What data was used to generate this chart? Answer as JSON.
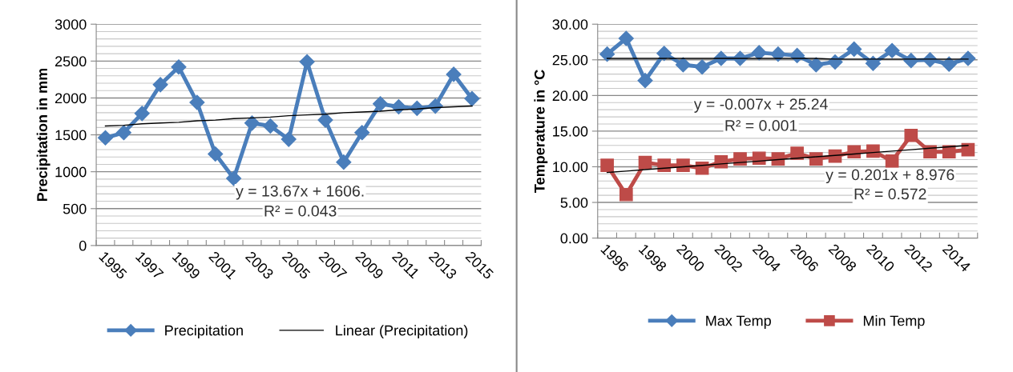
{
  "chart_data": [
    {
      "type": "line",
      "ylabel": "Precipitation in mm",
      "categories": [
        "1995",
        null,
        "1997",
        null,
        "1999",
        null,
        "2001",
        null,
        "2003",
        null,
        "2005",
        null,
        "2007",
        null,
        "2009",
        null,
        "2011",
        null,
        "2013",
        null,
        "2015"
      ],
      "series": [
        {
          "name": "Precipitation",
          "color": "#4a7ebb",
          "marker": "diamond",
          "values": [
            1460,
            1530,
            1790,
            2180,
            2420,
            1940,
            1240,
            910,
            1660,
            1620,
            1440,
            2490,
            1700,
            1130,
            1530,
            1920,
            1880,
            1860,
            1890,
            2320,
            1990
          ]
        },
        {
          "name": "Linear (Precipitation)",
          "color": "#000000",
          "marker": "none",
          "values": [
            1620,
            1630,
            1650,
            1660,
            1670,
            1690,
            1700,
            1720,
            1730,
            1740,
            1760,
            1770,
            1780,
            1800,
            1810,
            1820,
            1840,
            1850,
            1870,
            1880,
            1890
          ]
        }
      ],
      "ylim": [
        0,
        3000
      ],
      "yticks": [
        0,
        500,
        1000,
        1500,
        2000,
        2500,
        3000
      ],
      "annotations": [
        "y = 13.67x + 1606.",
        "R² = 0.043"
      ],
      "grid": "y",
      "legend": "bottom"
    },
    {
      "type": "line",
      "ylabel": "Temperature in °C",
      "categories": [
        "1996",
        null,
        "1998",
        null,
        "2000",
        null,
        "2002",
        null,
        "2004",
        null,
        "2006",
        null,
        "2008",
        null,
        "2010",
        null,
        "2012",
        null,
        "2014",
        null
      ],
      "series": [
        {
          "name": "Max Temp",
          "color": "#4a7ebb",
          "marker": "diamond",
          "values": [
            25.8,
            28.0,
            22.1,
            25.9,
            24.3,
            24.0,
            25.2,
            25.2,
            26.0,
            25.8,
            25.6,
            24.3,
            24.7,
            26.5,
            24.5,
            26.3,
            24.9,
            25.0,
            24.4,
            25.2
          ]
        },
        {
          "name": "Min Temp",
          "color": "#be4b48",
          "marker": "square",
          "values": [
            10.2,
            6.1,
            10.6,
            10.2,
            10.2,
            9.8,
            10.7,
            11.1,
            11.2,
            11.1,
            11.9,
            11.1,
            11.5,
            12.1,
            12.2,
            10.8,
            14.4,
            12.1,
            12.1,
            12.4
          ]
        },
        {
          "color": "#000000",
          "marker": "none",
          "values": [
            25.2,
            25.2,
            25.2,
            25.2,
            25.2,
            25.2,
            25.2,
            25.2,
            25.2,
            25.2,
            25.2,
            25.2,
            25.1,
            25.1,
            25.1,
            25.1,
            25.1,
            25.1,
            25.1,
            25.1
          ]
        },
        {
          "color": "#000000",
          "marker": "none",
          "values": [
            9.2,
            9.4,
            9.6,
            9.8,
            10.0,
            10.2,
            10.4,
            10.6,
            10.8,
            11.0,
            11.2,
            11.4,
            11.6,
            11.8,
            12.0,
            12.2,
            12.4,
            12.6,
            12.8,
            13.0
          ]
        }
      ],
      "ylim": [
        0,
        30
      ],
      "yticks": [
        {
          "value": 0,
          "label": "0.00"
        },
        {
          "value": 5,
          "label": "5.00"
        },
        {
          "value": 10,
          "label": "10.00"
        },
        {
          "value": 15,
          "label": "15.00"
        },
        {
          "value": 20,
          "label": "20.00"
        },
        {
          "value": 25,
          "label": "25.00"
        },
        {
          "value": 30,
          "label": "30.00"
        }
      ],
      "annotations": [
        "y = -0.007x + 25.24",
        "R² = 0.001",
        "y = 0.201x + 8.976",
        "R² = 0.572"
      ],
      "grid": "y",
      "legend": "bottom"
    }
  ]
}
